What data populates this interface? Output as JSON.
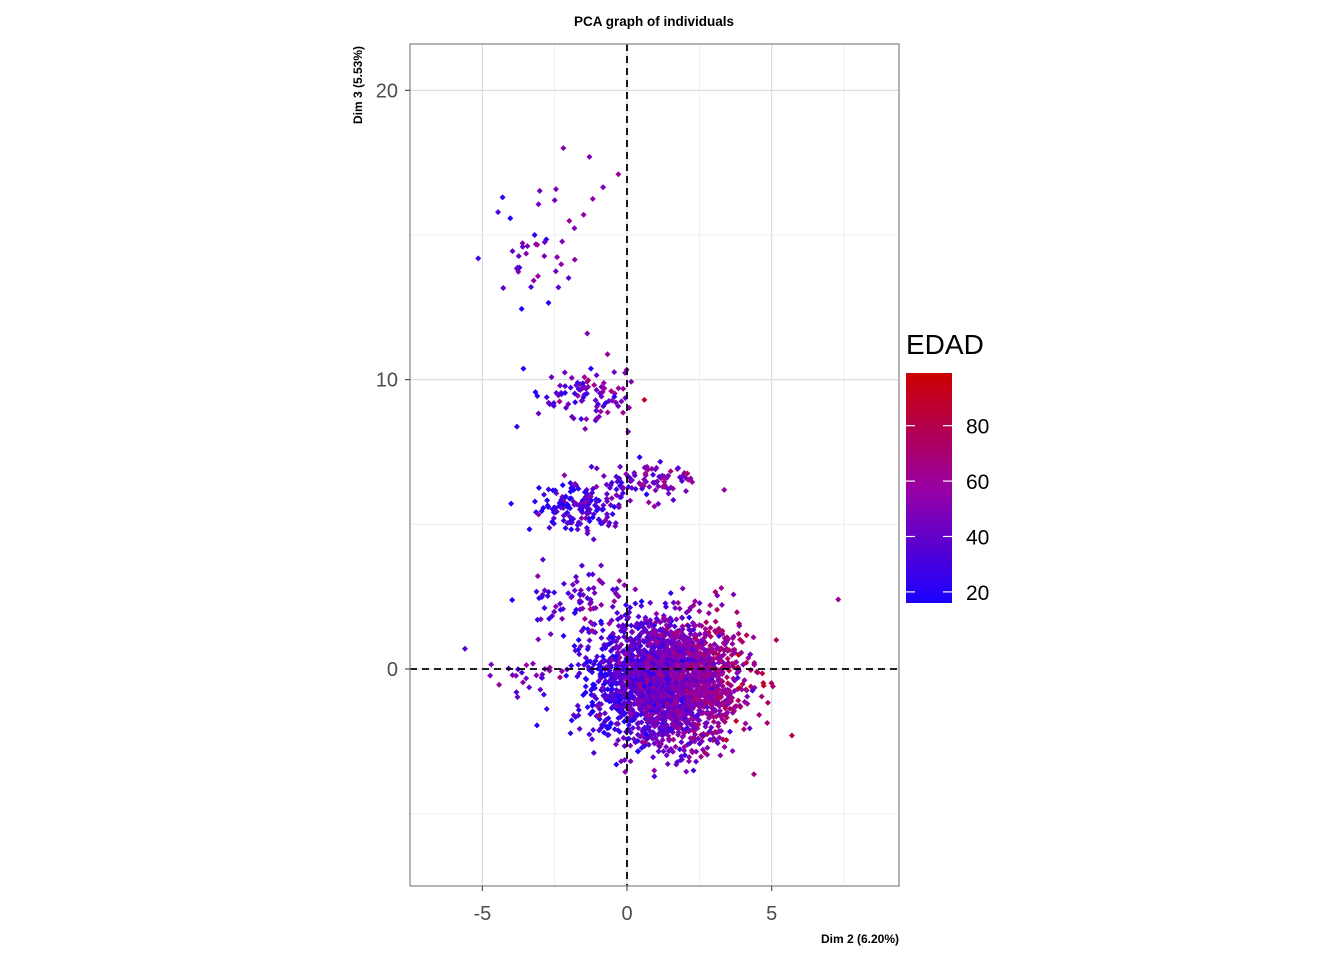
{
  "chart_data": {
    "type": "scatter",
    "title": "PCA graph of individuals",
    "xlabel": "Dim 2 (6.20%)",
    "ylabel": "Dim 3 (5.53%)",
    "xlim": [
      -7.5,
      9.4
    ],
    "ylim": [
      -7.5,
      21.6
    ],
    "x_ticks": [
      -5,
      0,
      5
    ],
    "y_ticks": [
      0,
      10,
      20
    ],
    "grid": true,
    "reference_lines": [
      {
        "axis": "x",
        "value": 0,
        "style": "dashed"
      },
      {
        "axis": "y",
        "value": 0,
        "style": "dashed"
      }
    ],
    "color_variable": "EDAD",
    "colorbar": {
      "title": "EDAD",
      "range": [
        16,
        99
      ],
      "ticks": [
        20,
        40,
        60,
        80
      ],
      "low_color": "#1a00ff",
      "mid_color": "#9900a3",
      "high_color": "#cc0000"
    },
    "clusters": [
      {
        "center_x": 1.4,
        "center_y": -0.4,
        "spread_x": 1.25,
        "spread_y": 1.05,
        "count": 2600,
        "color_value_mean": 45
      },
      {
        "center_x": -1.7,
        "center_y": 5.6,
        "spread_x": 0.75,
        "spread_y": 0.45,
        "count": 150,
        "color_value_mean": 30
      },
      {
        "center_x": 0.6,
        "center_y": 6.5,
        "spread_x": 0.9,
        "spread_y": 0.35,
        "count": 90,
        "color_value_mean": 45
      },
      {
        "center_x": -1.3,
        "center_y": 9.5,
        "spread_x": 0.9,
        "spread_y": 0.55,
        "count": 90,
        "color_value_mean": 45
      },
      {
        "center_x": -2.9,
        "center_y": 14.6,
        "spread_x": 0.8,
        "spread_y": 1.1,
        "count": 40,
        "color_value_mean": 40
      },
      {
        "center_x": -1.8,
        "center_y": 2.3,
        "spread_x": 0.8,
        "spread_y": 0.6,
        "count": 80,
        "color_value_mean": 40
      },
      {
        "center_x": -3.5,
        "center_y": -0.3,
        "spread_x": 0.6,
        "spread_y": 0.4,
        "count": 25,
        "color_value_mean": 45
      }
    ],
    "sample_points": [
      {
        "x": -2.2,
        "y": 18.0,
        "edad": 52
      },
      {
        "x": -1.3,
        "y": 17.7,
        "edad": 50
      },
      {
        "x": -0.3,
        "y": 17.1,
        "edad": 60
      },
      {
        "x": -4.3,
        "y": 16.3,
        "edad": 25
      },
      {
        "x": -2.5,
        "y": 16.2,
        "edad": 45
      },
      {
        "x": -1.5,
        "y": 15.7,
        "edad": 55
      },
      {
        "x": 7.3,
        "y": 2.4,
        "edad": 60
      },
      {
        "x": 5.7,
        "y": -2.3,
        "edad": 80
      },
      {
        "x": 0.6,
        "y": 9.3,
        "edad": 90
      },
      {
        "x": -5.6,
        "y": 0.7,
        "edad": 35
      }
    ]
  }
}
